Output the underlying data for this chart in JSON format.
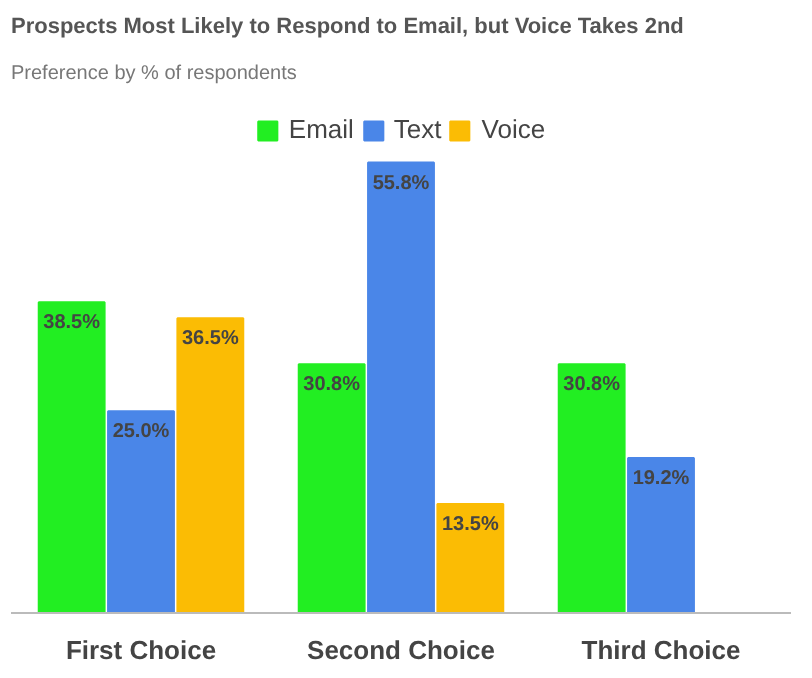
{
  "chart_data": {
    "type": "bar",
    "title": "Prospects Most Likely to Respond to Email, but Voice Takes 2nd",
    "subtitle": "Preference by % of respondents",
    "categories": [
      "First Choice",
      "Second Choice",
      "Third Choice"
    ],
    "series": [
      {
        "name": "Email",
        "color": "#22ee22",
        "values": [
          38.5,
          30.8,
          30.8
        ],
        "value_labels": [
          "38.5%",
          "30.8%",
          "30.8%"
        ]
      },
      {
        "name": "Text",
        "color": "#4a86e8",
        "values": [
          25.0,
          55.8,
          19.2
        ],
        "value_labels": [
          "25.0%",
          "55.8%",
          "19.2%"
        ]
      },
      {
        "name": "Voice",
        "color": "#fbbc04",
        "values": [
          36.5,
          13.5,
          null
        ],
        "value_labels": [
          "36.5%",
          "13.5%",
          null
        ]
      }
    ],
    "tick_labels": "x",
    "legend": "top"
  }
}
